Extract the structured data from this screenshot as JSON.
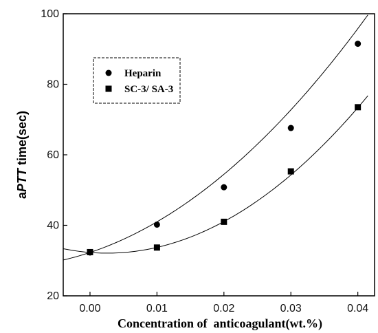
{
  "chart_data": {
    "type": "scatter",
    "xlabel": "Concentration of  anticoagulant(wt.%)",
    "ylabel_prefix": "a",
    "ylabel_italic": "PTT",
    "ylabel_suffix": "  time(sec)",
    "xlim": [
      -0.004,
      0.0425
    ],
    "ylim": [
      20,
      100
    ],
    "x_ticks": [
      0.0,
      0.01,
      0.02,
      0.03,
      0.04
    ],
    "x_tick_labels": [
      "0.00",
      "0.01",
      "0.02",
      "0.03",
      "0.04"
    ],
    "y_ticks": [
      20,
      40,
      60,
      80,
      100
    ],
    "y_tick_labels": [
      "20",
      "40",
      "60",
      "80",
      "100"
    ],
    "grid": false,
    "legend_position": "top-left",
    "series": [
      {
        "name": "Heparin",
        "marker": "circle",
        "x": [
          0.0,
          0.01,
          0.02,
          0.03,
          0.04
        ],
        "y": [
          32.3,
          40.2,
          50.8,
          67.6,
          91.5
        ],
        "fit_poly": [
          32.3,
          630,
          23930
        ],
        "fit_range": [
          -0.004,
          0.0415
        ]
      },
      {
        "name": "SC-3/ SA-3",
        "marker": "square",
        "x": [
          0.0,
          0.01,
          0.02,
          0.03,
          0.04
        ],
        "y": [
          32.4,
          33.7,
          41.0,
          55.3,
          73.5
        ],
        "fit_poly": [
          32.3,
          -150,
          29420
        ],
        "fit_range": [
          -0.004,
          0.0415
        ]
      }
    ]
  }
}
